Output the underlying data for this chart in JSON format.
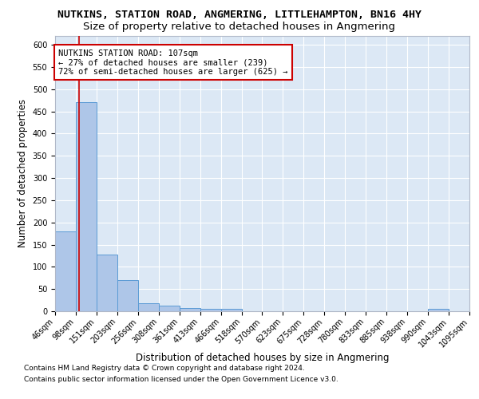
{
  "title": "NUTKINS, STATION ROAD, ANGMERING, LITTLEHAMPTON, BN16 4HY",
  "subtitle": "Size of property relative to detached houses in Angmering",
  "xlabel": "Distribution of detached houses by size in Angmering",
  "ylabel": "Number of detached properties",
  "bin_edges": [
    46,
    98,
    151,
    203,
    256,
    308,
    361,
    413,
    466,
    518,
    570,
    623,
    675,
    728,
    780,
    833,
    885,
    938,
    990,
    1043,
    1095
  ],
  "bar_heights": [
    180,
    470,
    128,
    70,
    18,
    12,
    7,
    5,
    5,
    0,
    0,
    0,
    0,
    0,
    0,
    0,
    0,
    0,
    5,
    0
  ],
  "bar_color": "#aec6e8",
  "bar_edge_color": "#5b9bd5",
  "property_line_x": 107,
  "property_line_color": "#cc0000",
  "annotation_line1": "NUTKINS STATION ROAD: 107sqm",
  "annotation_line2": "← 27% of detached houses are smaller (239)",
  "annotation_line3": "72% of semi-detached houses are larger (625) →",
  "annotation_box_color": "#ffffff",
  "annotation_box_edge_color": "#cc0000",
  "ylim": [
    0,
    620
  ],
  "yticks": [
    0,
    50,
    100,
    150,
    200,
    250,
    300,
    350,
    400,
    450,
    500,
    550,
    600
  ],
  "background_color": "#dce8f5",
  "footer_line1": "Contains HM Land Registry data © Crown copyright and database right 2024.",
  "footer_line2": "Contains public sector information licensed under the Open Government Licence v3.0.",
  "title_fontsize": 9.5,
  "subtitle_fontsize": 9.5,
  "tick_label_fontsize": 7,
  "xlabel_fontsize": 8.5,
  "ylabel_fontsize": 8.5,
  "annotation_fontsize": 7.5
}
